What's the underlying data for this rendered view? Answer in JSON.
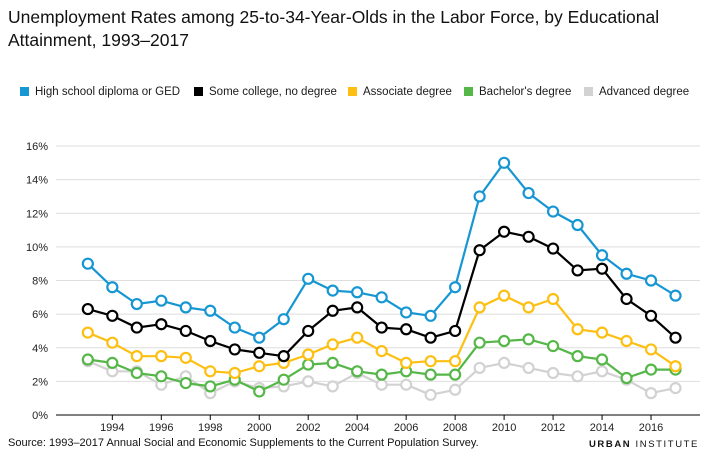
{
  "title": "Unemployment Rates among 25-to-34-Year-Olds in the Labor Force, by Educational Attainment, 1993–2017",
  "source": "Source: 1993–2017 Annual Social and Economic Supplements to the Current Population Survey.",
  "logo": {
    "part1": "URBAN",
    "part2": "INSTITUTE"
  },
  "chart_data": {
    "type": "line",
    "title": "Unemployment Rates among 25-to-34-Year-Olds in the Labor Force, by Educational Attainment, 1993–2017",
    "xlabel": "",
    "ylabel": "",
    "x": [
      1993,
      1994,
      1995,
      1996,
      1997,
      1998,
      1999,
      2000,
      2001,
      2002,
      2003,
      2004,
      2005,
      2006,
      2007,
      2008,
      2009,
      2010,
      2011,
      2012,
      2013,
      2014,
      2015,
      2016,
      2017
    ],
    "xticks": [
      "1994",
      "1996",
      "1998",
      "2000",
      "2002",
      "2004",
      "2006",
      "2008",
      "2010",
      "2012",
      "2014",
      "2016"
    ],
    "xtick_values": [
      1994,
      1996,
      1998,
      2000,
      2002,
      2004,
      2006,
      2008,
      2010,
      2012,
      2014,
      2016
    ],
    "yticks": [
      "0%",
      "2%",
      "4%",
      "6%",
      "8%",
      "10%",
      "12%",
      "14%",
      "16%"
    ],
    "ytick_values": [
      0,
      2,
      4,
      6,
      8,
      10,
      12,
      14,
      16
    ],
    "xlim": [
      1991.7,
      2018
    ],
    "ylim": [
      0,
      16
    ],
    "grid": true,
    "legend_position": "top",
    "series": [
      {
        "name": "High school diploma or GED",
        "color": "#1696d2",
        "values": [
          9.0,
          7.6,
          6.6,
          6.8,
          6.4,
          6.2,
          5.2,
          4.6,
          5.7,
          8.1,
          7.4,
          7.3,
          7.0,
          6.1,
          5.9,
          7.6,
          13.0,
          15.0,
          13.2,
          12.1,
          11.3,
          9.5,
          8.4,
          8.0,
          7.1
        ]
      },
      {
        "name": "Some college, no degree",
        "color": "#000000",
        "values": [
          6.3,
          5.9,
          5.2,
          5.4,
          5.0,
          4.4,
          3.9,
          3.7,
          3.5,
          5.0,
          6.2,
          6.4,
          5.2,
          5.1,
          4.6,
          5.0,
          9.8,
          10.9,
          10.6,
          9.9,
          8.6,
          8.7,
          6.9,
          5.9,
          4.6
        ]
      },
      {
        "name": "Associate degree",
        "color": "#fdbf11",
        "values": [
          4.9,
          4.3,
          3.5,
          3.5,
          3.4,
          2.6,
          2.5,
          2.9,
          3.1,
          3.6,
          4.2,
          4.6,
          3.8,
          3.1,
          3.2,
          3.2,
          6.4,
          7.1,
          6.4,
          6.9,
          5.1,
          4.9,
          4.4,
          3.9,
          2.9
        ]
      },
      {
        "name": "Bachelor's degree",
        "color": "#55b748",
        "values": [
          3.3,
          3.1,
          2.5,
          2.3,
          1.9,
          1.7,
          2.1,
          1.4,
          2.1,
          3.0,
          3.1,
          2.6,
          2.4,
          2.6,
          2.4,
          2.4,
          4.3,
          4.4,
          4.5,
          4.1,
          3.5,
          3.3,
          2.2,
          2.7,
          2.7
        ]
      },
      {
        "name": "Advanced degree",
        "color": "#d2d2d2",
        "values": [
          3.2,
          2.6,
          2.6,
          1.8,
          2.3,
          1.3,
          2.0,
          1.6,
          1.7,
          2.0,
          1.7,
          2.5,
          1.8,
          1.8,
          1.2,
          1.5,
          2.8,
          3.1,
          2.8,
          2.5,
          2.3,
          2.6,
          2.1,
          1.3,
          1.6
        ]
      }
    ]
  }
}
